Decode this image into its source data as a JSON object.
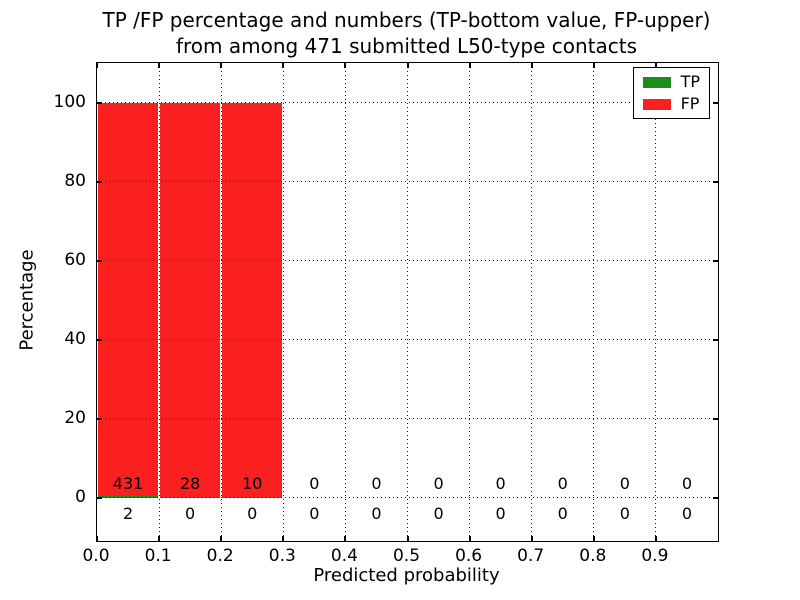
{
  "chart_data": {
    "type": "bar",
    "title": "TP /FP percentage and numbers (TP-bottom value, FP-upper)",
    "subtitle": "from among 471 submitted L50-type contacts",
    "xlabel": "Predicted probability",
    "ylabel": "Percentage",
    "xlim": [
      0.0,
      1.0
    ],
    "ylim": [
      -11,
      110
    ],
    "x_tick_values": [
      0.0,
      0.1,
      0.2,
      0.3,
      0.4,
      0.5,
      0.6,
      0.7,
      0.8,
      0.9
    ],
    "x_tick_labels": [
      "0.0",
      "0.1",
      "0.2",
      "0.3",
      "0.4",
      "0.5",
      "0.6",
      "0.7",
      "0.8",
      "0.9"
    ],
    "y_tick_values": [
      0,
      20,
      40,
      60,
      80,
      100
    ],
    "y_tick_labels": [
      "0",
      "20",
      "40",
      "60",
      "80",
      "100"
    ],
    "grid": "dotted",
    "legend": {
      "position": "upper right",
      "entries": [
        {
          "label": "TP",
          "color": "#1d8c1d"
        },
        {
          "label": "FP",
          "color": "#fb2020"
        }
      ]
    },
    "bins": [
      {
        "range": [
          0.0,
          0.1
        ],
        "fp_count": 431,
        "tp_count": 2,
        "fp_pct": 99.54,
        "tp_pct": 0.46
      },
      {
        "range": [
          0.1,
          0.2
        ],
        "fp_count": 28,
        "tp_count": 0,
        "fp_pct": 100,
        "tp_pct": 0
      },
      {
        "range": [
          0.2,
          0.3
        ],
        "fp_count": 10,
        "tp_count": 0,
        "fp_pct": 100,
        "tp_pct": 0
      },
      {
        "range": [
          0.3,
          0.4
        ],
        "fp_count": 0,
        "tp_count": 0,
        "fp_pct": 0,
        "tp_pct": 0
      },
      {
        "range": [
          0.4,
          0.5
        ],
        "fp_count": 0,
        "tp_count": 0,
        "fp_pct": 0,
        "tp_pct": 0
      },
      {
        "range": [
          0.5,
          0.6
        ],
        "fp_count": 0,
        "tp_count": 0,
        "fp_pct": 0,
        "tp_pct": 0
      },
      {
        "range": [
          0.6,
          0.7
        ],
        "fp_count": 0,
        "tp_count": 0,
        "fp_pct": 0,
        "tp_pct": 0
      },
      {
        "range": [
          0.7,
          0.8
        ],
        "fp_count": 0,
        "tp_count": 0,
        "fp_pct": 0,
        "tp_pct": 0
      },
      {
        "range": [
          0.8,
          0.9
        ],
        "fp_count": 0,
        "tp_count": 0,
        "fp_pct": 0,
        "tp_pct": 0
      },
      {
        "range": [
          0.9,
          1.0
        ],
        "fp_count": 0,
        "tp_count": 0,
        "fp_pct": 0,
        "tp_pct": 0
      }
    ]
  }
}
